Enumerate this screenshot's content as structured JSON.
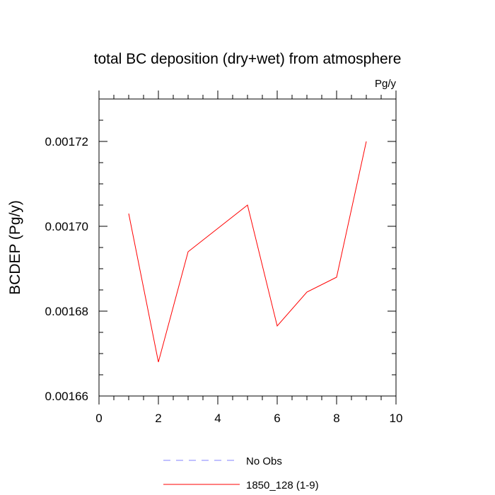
{
  "chart_data": {
    "type": "line",
    "title": "total BC deposition (dry+wet) from atmosphere",
    "units_label": "Pg/y",
    "ylabel": "BCDEP  (Pg/y)",
    "xlabel": "",
    "xlim": [
      0,
      10
    ],
    "ylim": [
      0.00166,
      0.00173
    ],
    "x_ticks": [
      0,
      2,
      4,
      6,
      8,
      10
    ],
    "x_tick_labels": [
      "0",
      "2",
      "4",
      "6",
      "8",
      "10"
    ],
    "x_minor_step": 0.5,
    "y_ticks": [
      0.00166,
      0.00168,
      0.0017,
      0.00172
    ],
    "y_tick_labels": [
      "0.00166",
      "0.00168",
      "0.00170",
      "0.00172"
    ],
    "y_minor_step": 5e-06,
    "grid": false,
    "legend_position": "bottom",
    "series": [
      {
        "name": "No Obs",
        "color": "#8080ff",
        "dash": "dashed",
        "x": [],
        "values": []
      },
      {
        "name": "1850_128 (1-9)",
        "color": "#ff0000",
        "dash": "solid",
        "x": [
          1,
          2,
          3,
          4,
          5,
          6,
          7,
          8,
          9
        ],
        "values": [
          0.001703,
          0.001668,
          0.001694,
          0.0016995,
          0.001705,
          0.0016765,
          0.0016845,
          0.001688,
          0.00172
        ]
      }
    ]
  }
}
